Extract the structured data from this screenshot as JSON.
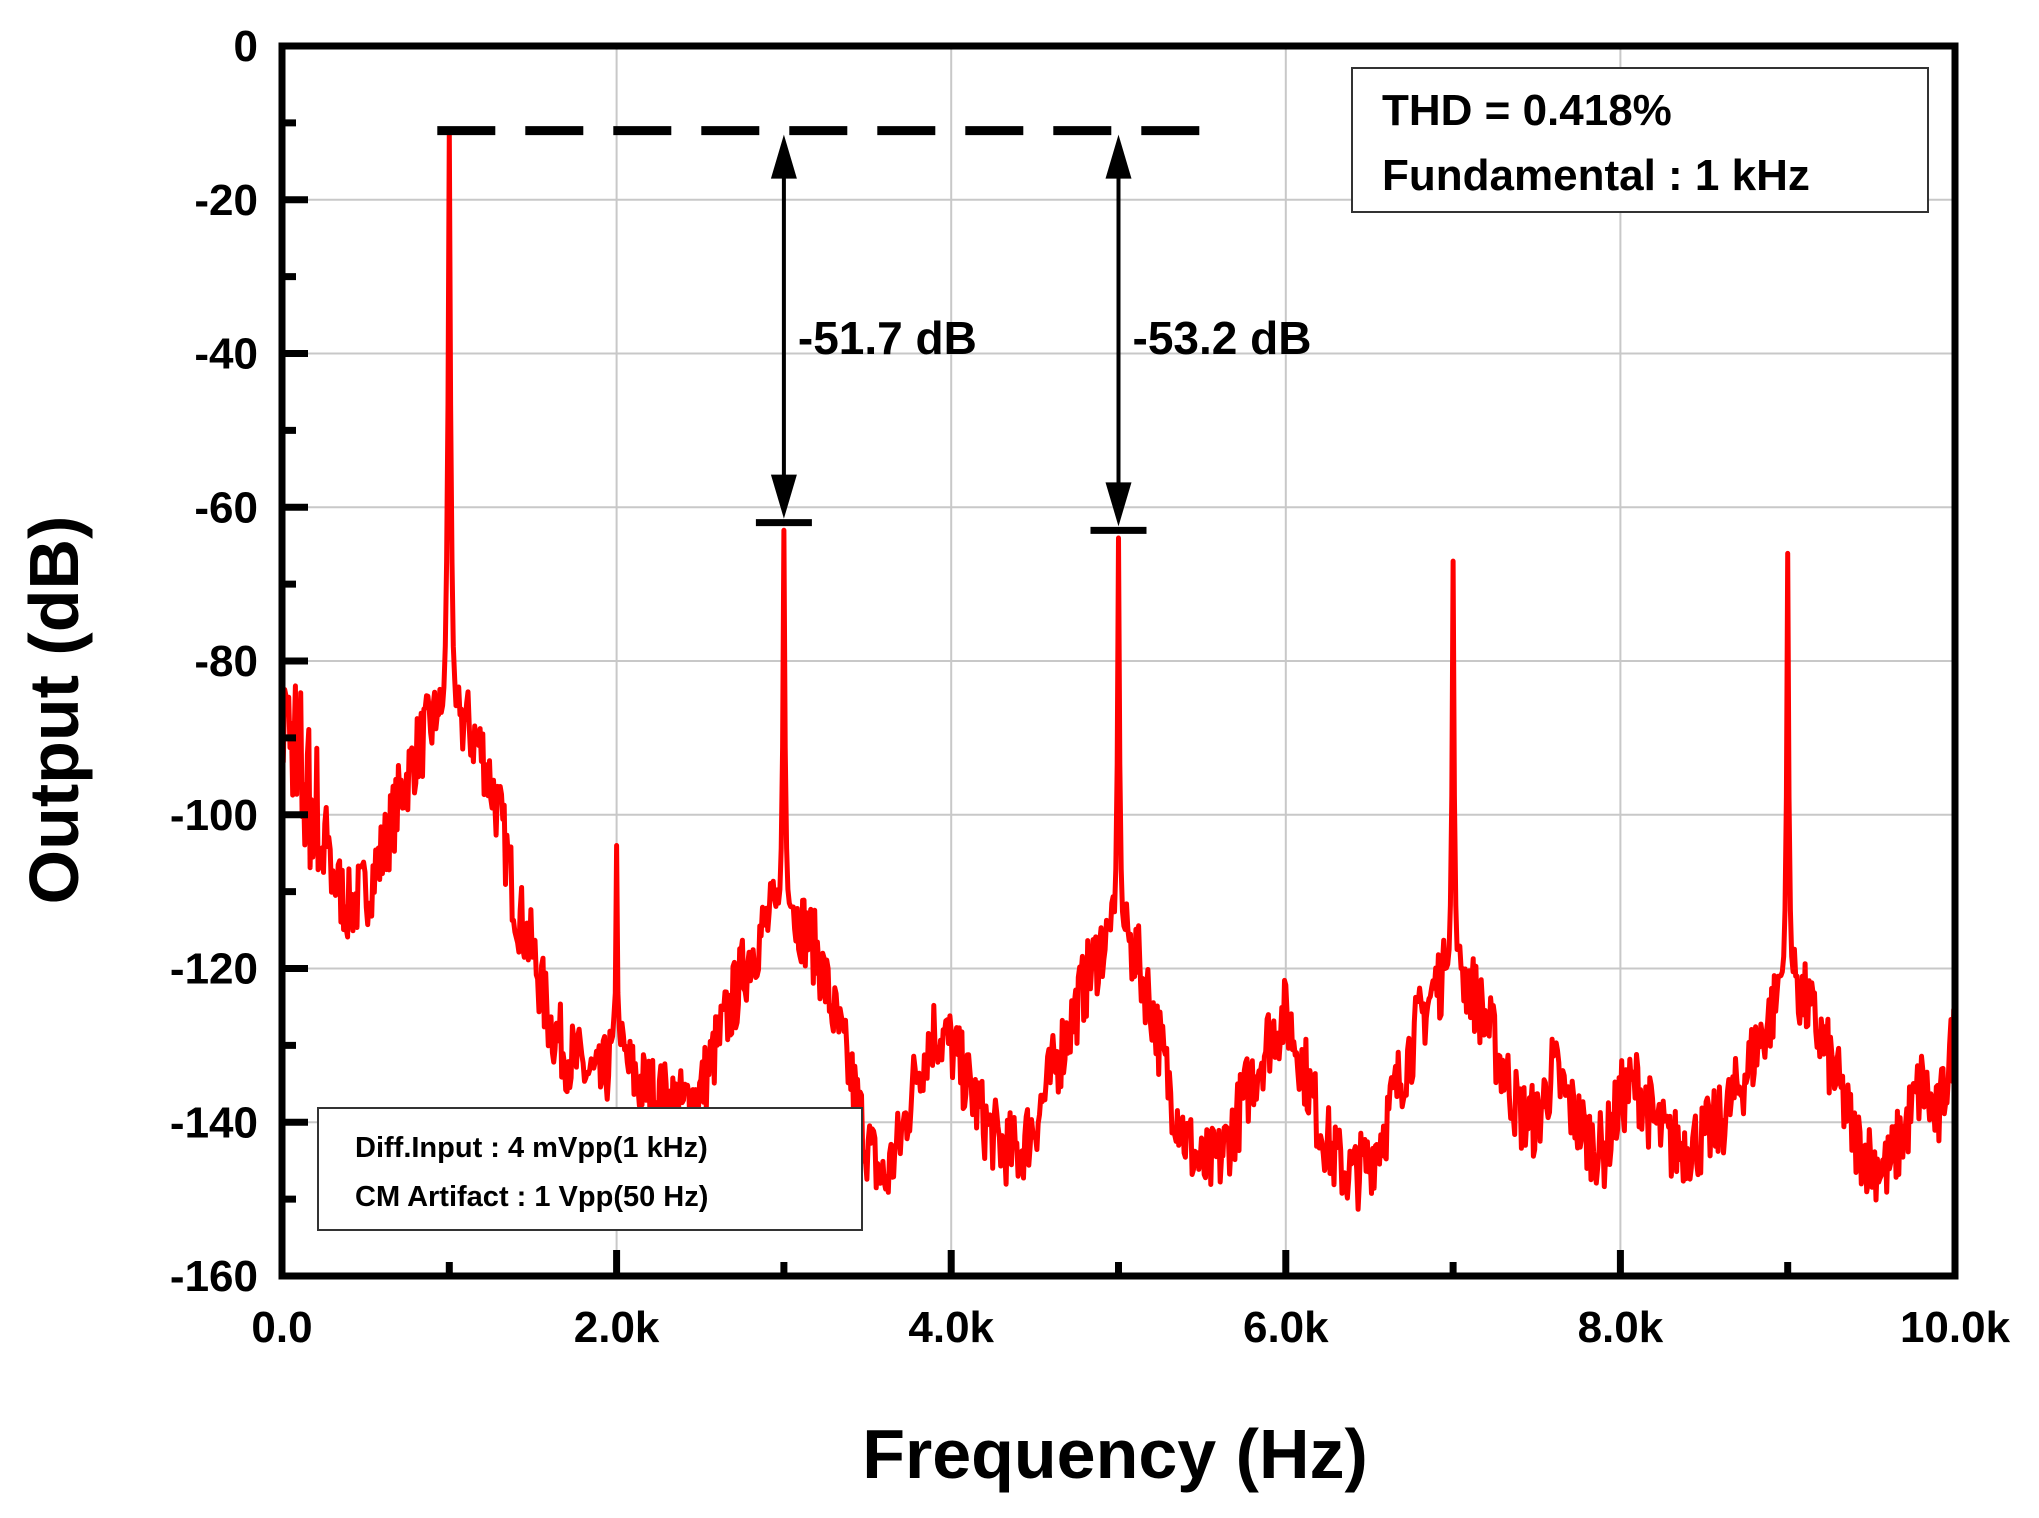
{
  "chart_data": {
    "type": "line",
    "xlabel": "Frequency (Hz)",
    "ylabel": "Output (dB)",
    "xlim": [
      0,
      10000
    ],
    "ylim": [
      -160,
      0
    ],
    "x_tick_labels": [
      "0.0",
      "2.0k",
      "4.0k",
      "6.0k",
      "8.0k",
      "10.0k"
    ],
    "x_ticks": [
      0,
      2000,
      4000,
      6000,
      8000,
      10000
    ],
    "y_tick_labels": [
      "0",
      "-20",
      "-40",
      "-60",
      "-80",
      "-100",
      "-120",
      "-140",
      "-160"
    ],
    "y_ticks": [
      0,
      -20,
      -40,
      -60,
      -80,
      -100,
      -120,
      -140,
      -160
    ],
    "grid": true,
    "series_color": "#ff0000",
    "noise_floor": [
      [
        0,
        -85
      ],
      [
        100,
        -95
      ],
      [
        200,
        -100
      ],
      [
        300,
        -108
      ],
      [
        400,
        -112
      ],
      [
        500,
        -110
      ],
      [
        600,
        -105
      ],
      [
        700,
        -98
      ],
      [
        800,
        -92
      ],
      [
        900,
        -88
      ],
      [
        1000,
        -87
      ],
      [
        1100,
        -88
      ],
      [
        1200,
        -92
      ],
      [
        1300,
        -100
      ],
      [
        1400,
        -112
      ],
      [
        1500,
        -118
      ],
      [
        1600,
        -127
      ],
      [
        1700,
        -131
      ],
      [
        1800,
        -133
      ],
      [
        1900,
        -135
      ],
      [
        2000,
        -130
      ],
      [
        2100,
        -134
      ],
      [
        2200,
        -136
      ],
      [
        2300,
        -137
      ],
      [
        2400,
        -138
      ],
      [
        2500,
        -136
      ],
      [
        2600,
        -130
      ],
      [
        2700,
        -124
      ],
      [
        2800,
        -118
      ],
      [
        2900,
        -114
      ],
      [
        3000,
        -112
      ],
      [
        3100,
        -114
      ],
      [
        3200,
        -118
      ],
      [
        3300,
        -126
      ],
      [
        3400,
        -134
      ],
      [
        3500,
        -143
      ],
      [
        3600,
        -148
      ],
      [
        3700,
        -142
      ],
      [
        3800,
        -133
      ],
      [
        3900,
        -128
      ],
      [
        4000,
        -130
      ],
      [
        4100,
        -135
      ],
      [
        4200,
        -140
      ],
      [
        4300,
        -143
      ],
      [
        4400,
        -144
      ],
      [
        4500,
        -140
      ],
      [
        4600,
        -134
      ],
      [
        4700,
        -128
      ],
      [
        4800,
        -122
      ],
      [
        4900,
        -117
      ],
      [
        5000,
        -115
      ],
      [
        5100,
        -118
      ],
      [
        5200,
        -125
      ],
      [
        5300,
        -135
      ],
      [
        5400,
        -142
      ],
      [
        5500,
        -146
      ],
      [
        5600,
        -145
      ],
      [
        5700,
        -140
      ],
      [
        5800,
        -134
      ],
      [
        5900,
        -129
      ],
      [
        6000,
        -126
      ],
      [
        6100,
        -132
      ],
      [
        6200,
        -140
      ],
      [
        6300,
        -145
      ],
      [
        6400,
        -147
      ],
      [
        6500,
        -145
      ],
      [
        6600,
        -140
      ],
      [
        6700,
        -133
      ],
      [
        6800,
        -127
      ],
      [
        6900,
        -122
      ],
      [
        7000,
        -120
      ],
      [
        7100,
        -122
      ],
      [
        7200,
        -127
      ],
      [
        7300,
        -133
      ],
      [
        7400,
        -139
      ],
      [
        7500,
        -140
      ],
      [
        7600,
        -133
      ],
      [
        7700,
        -138
      ],
      [
        7800,
        -142
      ],
      [
        7900,
        -144
      ],
      [
        8000,
        -137
      ],
      [
        8100,
        -135
      ],
      [
        8200,
        -140
      ],
      [
        8300,
        -143
      ],
      [
        8400,
        -143
      ],
      [
        8500,
        -142
      ],
      [
        8600,
        -140
      ],
      [
        8700,
        -136
      ],
      [
        8800,
        -131
      ],
      [
        8900,
        -126
      ],
      [
        9000,
        -121
      ],
      [
        9100,
        -124
      ],
      [
        9200,
        -129
      ],
      [
        9300,
        -135
      ],
      [
        9400,
        -142
      ],
      [
        9500,
        -145
      ],
      [
        9600,
        -146
      ],
      [
        9700,
        -141
      ],
      [
        9800,
        -135
      ],
      [
        9900,
        -140
      ],
      [
        10000,
        -128
      ]
    ],
    "peaks": [
      {
        "f": 1000,
        "level": -11,
        "width": 80
      },
      {
        "f": 2000,
        "level": -104,
        "width": 40
      },
      {
        "f": 3000,
        "level": -63,
        "width": 60
      },
      {
        "f": 5000,
        "level": -64,
        "width": 60
      },
      {
        "f": 7000,
        "level": -67,
        "width": 60
      },
      {
        "f": 9000,
        "level": -66,
        "width": 60
      }
    ],
    "reference_level": -11,
    "annotations": [
      {
        "label": "-51.7 dB",
        "x": 3000,
        "top": -11,
        "bottom": -62
      },
      {
        "label": "-53.2 dB",
        "x": 5000,
        "top": -11,
        "bottom": -63
      }
    ]
  },
  "legend_top": {
    "line1": "THD = 0.418%",
    "line2": "Fundamental : 1 kHz"
  },
  "legend_bottom": {
    "line1": "Diff.Input : 4 mVpp(1 kHz)",
    "line2": "CM Artifact : 1 Vpp(50 Hz)"
  }
}
